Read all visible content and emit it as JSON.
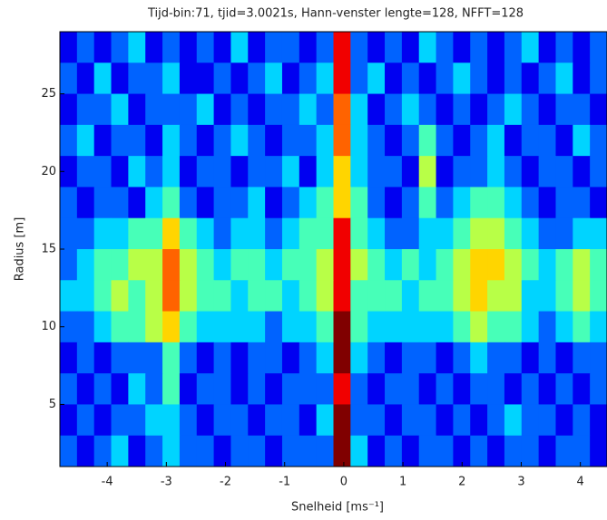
{
  "chart_data": {
    "type": "heatmap",
    "title": "Tijd-bin:71, tjid=3.0021s, Hann-venster lengte=128, NFFT=128",
    "xlabel": "Snelheid [ms⁻¹]",
    "ylabel": "Radius [m]",
    "xlim": [
      -4.8,
      4.45
    ],
    "ylim": [
      1,
      29
    ],
    "xticks": [
      -4,
      -3,
      -2,
      -1,
      0,
      1,
      2,
      3,
      4
    ],
    "yticks": [
      5,
      10,
      15,
      20,
      25
    ],
    "colormap": "jet",
    "clim": [
      0,
      9
    ],
    "values": [
      [
        1,
        2,
        1,
        2,
        3,
        1,
        2,
        1,
        2,
        1,
        3,
        1,
        2,
        2,
        1,
        2,
        8,
        2,
        1,
        2,
        1,
        3,
        2,
        1,
        2,
        1,
        2,
        3,
        1,
        2,
        1,
        2
      ],
      [
        2,
        1,
        3,
        1,
        2,
        2,
        3,
        1,
        1,
        2,
        1,
        2,
        3,
        1,
        2,
        3,
        8,
        2,
        3,
        1,
        2,
        1,
        2,
        3,
        2,
        1,
        2,
        1,
        2,
        3,
        1,
        2
      ],
      [
        1,
        2,
        2,
        3,
        1,
        2,
        2,
        2,
        3,
        1,
        2,
        1,
        2,
        2,
        3,
        2,
        7,
        3,
        1,
        2,
        3,
        2,
        1,
        2,
        1,
        2,
        3,
        2,
        1,
        2,
        2,
        1
      ],
      [
        2,
        3,
        1,
        2,
        2,
        1,
        3,
        2,
        1,
        2,
        3,
        2,
        1,
        2,
        2,
        3,
        7,
        3,
        2,
        1,
        2,
        4,
        2,
        1,
        2,
        3,
        1,
        2,
        2,
        1,
        3,
        2
      ],
      [
        1,
        2,
        2,
        1,
        3,
        2,
        3,
        1,
        2,
        2,
        1,
        2,
        2,
        3,
        1,
        3,
        6,
        3,
        2,
        2,
        1,
        5,
        1,
        2,
        2,
        3,
        2,
        1,
        2,
        2,
        1,
        2
      ],
      [
        2,
        1,
        2,
        2,
        1,
        3,
        4,
        2,
        1,
        2,
        2,
        3,
        1,
        2,
        3,
        4,
        6,
        4,
        2,
        1,
        2,
        4,
        2,
        3,
        4,
        4,
        3,
        2,
        1,
        2,
        2,
        1
      ],
      [
        2,
        2,
        3,
        3,
        4,
        4,
        6,
        4,
        3,
        2,
        3,
        3,
        2,
        3,
        4,
        4,
        8,
        4,
        3,
        2,
        2,
        3,
        3,
        4,
        5,
        5,
        4,
        3,
        2,
        2,
        3,
        3
      ],
      [
        2,
        3,
        4,
        4,
        5,
        5,
        7,
        5,
        4,
        3,
        4,
        4,
        3,
        4,
        4,
        5,
        8,
        5,
        4,
        3,
        4,
        3,
        4,
        5,
        6,
        6,
        5,
        4,
        3,
        4,
        5,
        4
      ],
      [
        3,
        3,
        4,
        5,
        4,
        5,
        7,
        5,
        4,
        4,
        3,
        4,
        4,
        3,
        4,
        5,
        8,
        4,
        4,
        4,
        3,
        4,
        4,
        5,
        6,
        5,
        5,
        3,
        3,
        4,
        5,
        4
      ],
      [
        2,
        2,
        3,
        4,
        4,
        5,
        6,
        4,
        3,
        3,
        3,
        3,
        2,
        3,
        3,
        4,
        9,
        4,
        3,
        3,
        3,
        3,
        3,
        4,
        5,
        4,
        4,
        3,
        2,
        3,
        4,
        3
      ],
      [
        1,
        2,
        1,
        2,
        2,
        2,
        4,
        2,
        1,
        2,
        1,
        2,
        2,
        1,
        2,
        3,
        9,
        3,
        2,
        1,
        2,
        2,
        1,
        2,
        3,
        2,
        2,
        1,
        2,
        1,
        2,
        2
      ],
      [
        2,
        1,
        2,
        1,
        3,
        2,
        4,
        1,
        2,
        2,
        1,
        2,
        1,
        2,
        2,
        2,
        8,
        2,
        1,
        2,
        2,
        1,
        2,
        1,
        2,
        2,
        1,
        2,
        1,
        2,
        1,
        2
      ],
      [
        1,
        2,
        1,
        2,
        2,
        3,
        3,
        2,
        1,
        2,
        2,
        1,
        2,
        2,
        1,
        3,
        9,
        2,
        2,
        1,
        2,
        2,
        1,
        2,
        1,
        2,
        3,
        2,
        2,
        1,
        2,
        1
      ],
      [
        2,
        1,
        2,
        3,
        1,
        2,
        3,
        2,
        2,
        1,
        2,
        2,
        1,
        2,
        2,
        2,
        9,
        3,
        1,
        2,
        1,
        2,
        2,
        1,
        2,
        1,
        2,
        2,
        1,
        2,
        2,
        1
      ]
    ]
  }
}
